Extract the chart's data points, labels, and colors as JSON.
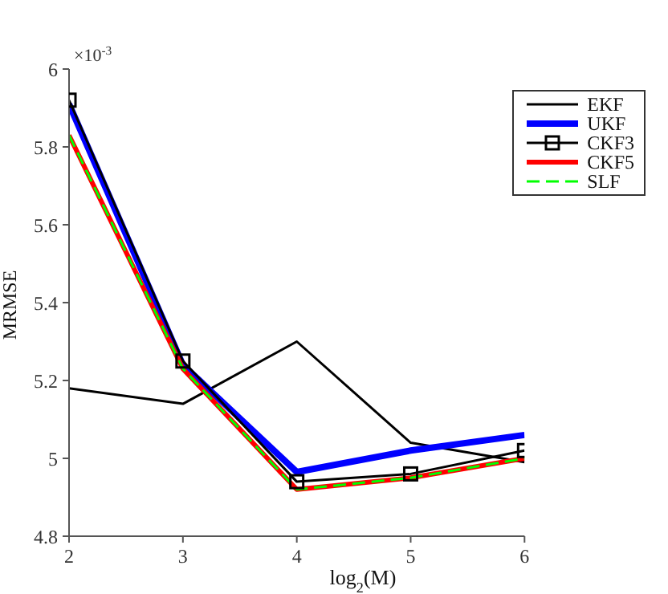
{
  "chart_data": {
    "type": "line",
    "xlabel": "log$_{2}$(M)",
    "ylabel": "MRMSE",
    "annotations": [
      "×10$^{-3}$"
    ],
    "x": [
      2,
      3,
      4,
      5,
      6
    ],
    "xlim": [
      2,
      6
    ],
    "xticks": [
      2,
      3,
      4,
      5,
      6
    ],
    "ylim": [
      4.8,
      6
    ],
    "yticks": [
      4.8,
      5,
      5.2,
      5.4,
      5.6,
      5.8,
      6
    ],
    "grid": false,
    "legend": "top right",
    "series": [
      {
        "name": "EKF",
        "color": "#000000",
        "values": [
          5.18,
          5.14,
          5.3,
          5.04,
          4.99
        ]
      },
      {
        "name": "UKF",
        "color": "#0000ff",
        "values": [
          5.91,
          5.24,
          4.965,
          5.02,
          5.06
        ]
      },
      {
        "name": "CKF3",
        "color": "#000000",
        "marker": "square",
        "values": [
          5.92,
          5.25,
          4.94,
          4.96,
          5.02
        ]
      },
      {
        "name": "CKF5",
        "color": "#ff0000",
        "values": [
          5.83,
          5.23,
          4.92,
          4.95,
          5.0
        ]
      },
      {
        "name": "SLF",
        "color": "#00ff00",
        "line_style": "dashed",
        "values": [
          5.83,
          5.23,
          4.92,
          4.95,
          5.0
        ]
      }
    ]
  }
}
